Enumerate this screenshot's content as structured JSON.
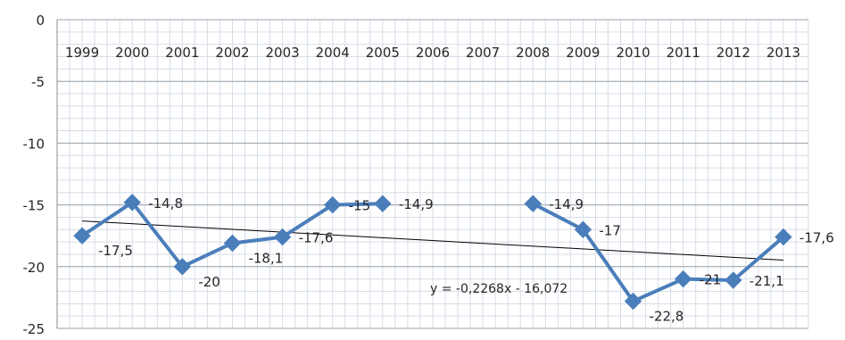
{
  "chart_data": {
    "type": "line",
    "title": "",
    "xlabel": "",
    "ylabel": "",
    "categories": [
      "1999",
      "2000",
      "2001",
      "2002",
      "2003",
      "2004",
      "2005",
      "2006",
      "2007",
      "2008",
      "2009",
      "2010",
      "2011",
      "2012",
      "2013"
    ],
    "series": [
      {
        "values": [
          -17.5,
          -14.8,
          -20,
          -18.1,
          -17.6,
          -15,
          -14.9,
          null,
          null,
          -14.9,
          -17,
          -22.8,
          -21,
          -21.1,
          -17.6
        ],
        "data_labels": [
          "-17,5",
          "-14,8",
          "-20",
          "-18,1",
          "-17,6",
          "-15",
          "-14,9",
          "",
          "",
          "-14,9",
          "-17",
          "-22,8",
          "-21",
          "-21,1",
          "-17,6"
        ],
        "color": "#4a7ebb",
        "marker": "diamond"
      }
    ],
    "y_ticks": [
      "0",
      "-5",
      "-10",
      "-15",
      "-20",
      "-25"
    ],
    "ylim": [
      -25,
      0
    ],
    "trendline": {
      "type": "linear",
      "slope": -0.2268,
      "intercept": -16.072,
      "equation_label": "y = -0,2268x - 16,072",
      "color": "#000000"
    },
    "grid": true,
    "x_axis_position": "top",
    "legend": "none"
  }
}
